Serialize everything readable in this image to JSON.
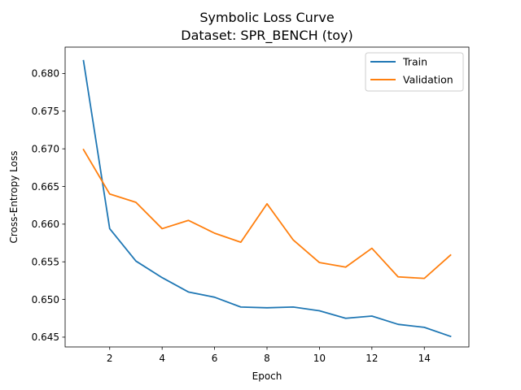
{
  "chart_data": {
    "type": "line",
    "title": "Symbolic Loss Curve",
    "subtitle": "Dataset: SPR_BENCH (toy)",
    "xlabel": "Epoch",
    "ylabel": "Cross-Entropy Loss",
    "xlim": [
      0.3,
      15.7
    ],
    "ylim": [
      0.6437,
      0.6835
    ],
    "xticks": [
      2,
      4,
      6,
      8,
      10,
      12,
      14
    ],
    "yticks": [
      0.645,
      0.65,
      0.655,
      0.66,
      0.665,
      0.67,
      0.675,
      0.68
    ],
    "ytick_labels": [
      "0.645",
      "0.650",
      "0.655",
      "0.660",
      "0.665",
      "0.670",
      "0.675",
      "0.680"
    ],
    "grid": false,
    "legend_position": "upper right",
    "x": [
      1,
      2,
      3,
      4,
      5,
      6,
      7,
      8,
      9,
      10,
      11,
      12,
      13,
      14,
      15
    ],
    "series": [
      {
        "name": "Train",
        "color": "#1f77b4",
        "values": [
          0.6817,
          0.6594,
          0.6551,
          0.6529,
          0.651,
          0.6503,
          0.649,
          0.6489,
          0.649,
          0.6485,
          0.6475,
          0.6478,
          0.6467,
          0.6463,
          0.6451
        ]
      },
      {
        "name": "Validation",
        "color": "#ff7f0e",
        "values": [
          0.6699,
          0.664,
          0.6629,
          0.6594,
          0.6605,
          0.6588,
          0.6576,
          0.6627,
          0.6579,
          0.6549,
          0.6543,
          0.6568,
          0.653,
          0.6528,
          0.6559
        ]
      }
    ]
  }
}
